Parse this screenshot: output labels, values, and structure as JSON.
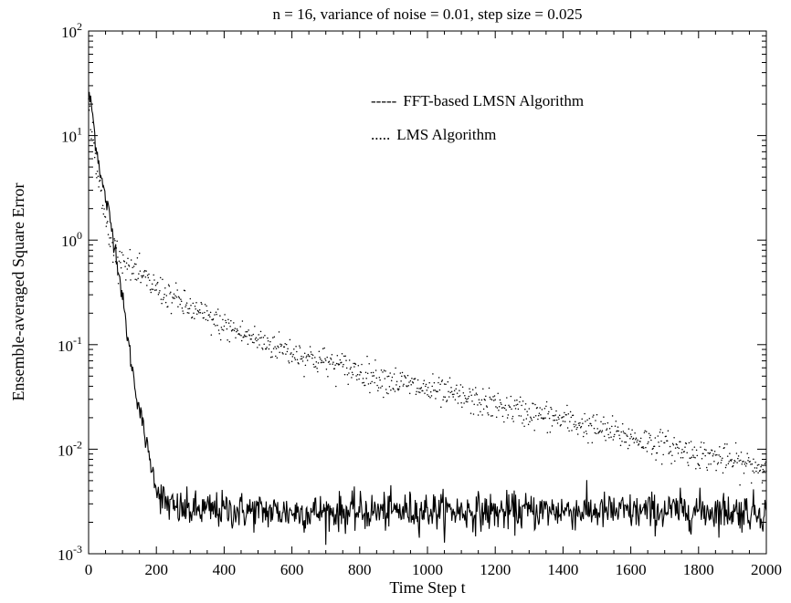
{
  "chart_data": {
    "type": "line",
    "title": "n = 16, variance of noise = 0.01, step size = 0.025",
    "xlabel": "Time Step t",
    "ylabel": "Ensemble-averaged Square Error",
    "xlim": [
      0,
      2000
    ],
    "ylim": [
      0.001,
      100
    ],
    "y_scale": "log",
    "x_ticks": [
      "0",
      "200",
      "400",
      "600",
      "800",
      "1000",
      "1200",
      "1400",
      "1600",
      "1800",
      "2000"
    ],
    "y_ticks": [
      {
        "base": "10",
        "exp": "-3"
      },
      {
        "base": "10",
        "exp": "-2"
      },
      {
        "base": "10",
        "exp": "-1"
      },
      {
        "base": "10",
        "exp": "0"
      },
      {
        "base": "10",
        "exp": "1"
      },
      {
        "base": "10",
        "exp": "2"
      }
    ],
    "grid": false,
    "legend_position": "top-right",
    "series": [
      {
        "name": "FFT-based LMSN Algorithm",
        "legend_marker": "-----",
        "style": "solid",
        "color": "#000000",
        "x": [
          0,
          10,
          20,
          40,
          60,
          80,
          100,
          120,
          140,
          160,
          180,
          200,
          220,
          250,
          300,
          400,
          600,
          800,
          1000,
          1200,
          1400,
          1600,
          1800,
          2000
        ],
        "y": [
          25,
          18,
          9,
          3.5,
          1.8,
          0.8,
          0.28,
          0.09,
          0.035,
          0.017,
          0.008,
          0.0045,
          0.0032,
          0.0027,
          0.0026,
          0.0026,
          0.0025,
          0.0025,
          0.0026,
          0.0025,
          0.0026,
          0.0025,
          0.0026,
          0.0025
        ]
      },
      {
        "name": "LMS Algorithm",
        "legend_marker": ".....",
        "style": "dotted",
        "color": "#000000",
        "x": [
          0,
          10,
          20,
          40,
          60,
          80,
          100,
          150,
          200,
          300,
          400,
          500,
          600,
          700,
          800,
          900,
          1000,
          1200,
          1400,
          1600,
          1800,
          2000
        ],
        "y": [
          18,
          12,
          6,
          2.2,
          1.1,
          0.8,
          0.65,
          0.45,
          0.35,
          0.22,
          0.15,
          0.11,
          0.085,
          0.068,
          0.055,
          0.045,
          0.037,
          0.026,
          0.019,
          0.013,
          0.009,
          0.0065
        ]
      }
    ]
  }
}
